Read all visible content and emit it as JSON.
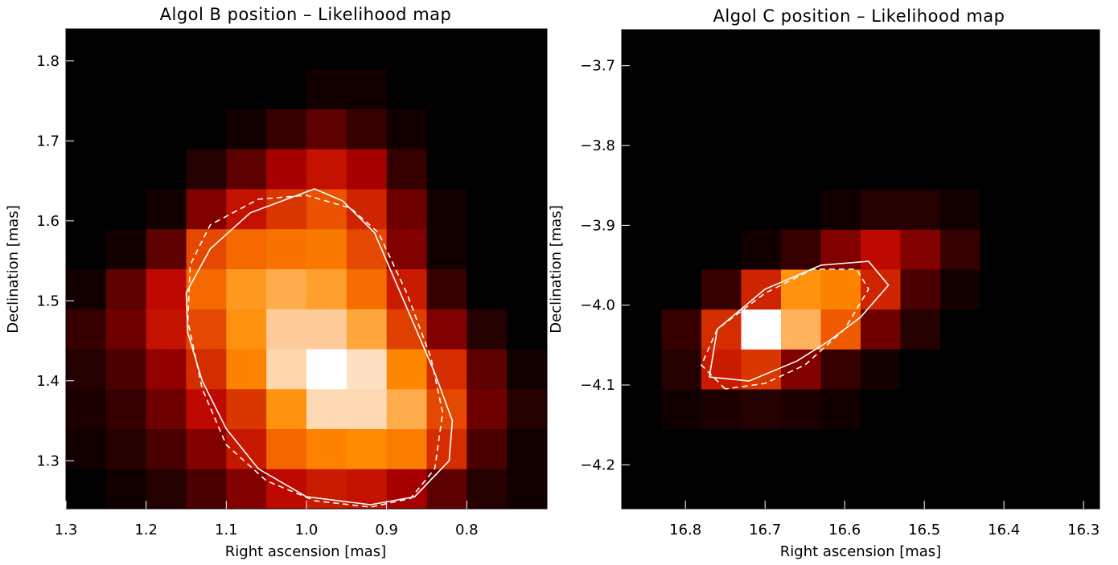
{
  "chart_data": [
    {
      "type": "heatmap",
      "title": "Algol B position –  Likelihood map",
      "xlabel": "Right ascension [mas]",
      "ylabel": "Declination [mas]",
      "xlim": [
        1.3,
        0.7
      ],
      "ylim": [
        1.24,
        1.84
      ],
      "x_reversed": true,
      "xticks": [
        1.3,
        1.2,
        1.1,
        1.0,
        0.9,
        0.8
      ],
      "xtick_labels": [
        "1.3",
        "1.2",
        "1.1",
        "1.0",
        "0.9",
        "0.8"
      ],
      "yticks": [
        1.3,
        1.4,
        1.5,
        1.6,
        1.7,
        1.8
      ],
      "ytick_labels": [
        "1.3",
        "1.4",
        "1.5",
        "1.6",
        "1.7",
        "1.8"
      ],
      "grid": false,
      "colormap": [
        "#000000",
        "#b80000",
        "#f05a00",
        "#ff8c00",
        "#ffcc99",
        "#ffffff"
      ],
      "cell_x_size": 0.05,
      "cell_y_size": 0.05,
      "cell_x_centers": [
        1.275,
        1.225,
        1.175,
        1.125,
        1.075,
        1.025,
        0.975,
        0.925,
        0.875,
        0.825,
        0.775,
        0.725
      ],
      "cell_y_centers": [
        1.265,
        1.315,
        1.365,
        1.415,
        1.465,
        1.515,
        1.565,
        1.615,
        1.665,
        1.715,
        1.765,
        1.815
      ],
      "values": [
        [
          0.0,
          0.02,
          0.04,
          0.08,
          0.14,
          0.22,
          0.26,
          0.24,
          0.18,
          0.1,
          0.04,
          0.02
        ],
        [
          0.02,
          0.04,
          0.08,
          0.14,
          0.25,
          0.45,
          0.56,
          0.6,
          0.54,
          0.3,
          0.08,
          0.02
        ],
        [
          0.03,
          0.06,
          0.12,
          0.22,
          0.32,
          0.62,
          0.85,
          0.85,
          0.7,
          0.36,
          0.12,
          0.04
        ],
        [
          0.04,
          0.08,
          0.16,
          0.3,
          0.56,
          0.84,
          1.0,
          0.88,
          0.58,
          0.3,
          0.1,
          0.02
        ],
        [
          0.06,
          0.12,
          0.24,
          0.36,
          0.62,
          0.8,
          0.8,
          0.68,
          0.34,
          0.14,
          0.04,
          0.0
        ],
        [
          0.02,
          0.1,
          0.22,
          0.46,
          0.64,
          0.7,
          0.66,
          0.48,
          0.26,
          0.06,
          0.0,
          0.0
        ],
        [
          0.0,
          0.02,
          0.1,
          0.36,
          0.46,
          0.5,
          0.52,
          0.36,
          0.14,
          0.02,
          0.0,
          0.0
        ],
        [
          0.0,
          0.0,
          0.02,
          0.14,
          0.24,
          0.32,
          0.38,
          0.28,
          0.12,
          0.02,
          0.0,
          0.0
        ],
        [
          0.0,
          0.0,
          0.0,
          0.04,
          0.1,
          0.18,
          0.24,
          0.18,
          0.06,
          0.0,
          0.0,
          0.0
        ],
        [
          0.0,
          0.0,
          0.0,
          0.0,
          0.02,
          0.06,
          0.1,
          0.06,
          0.02,
          0.0,
          0.0,
          0.0
        ],
        [
          0.0,
          0.0,
          0.0,
          0.0,
          0.0,
          0.0,
          0.02,
          0.02,
          0.0,
          0.0,
          0.0,
          0.0
        ],
        [
          0.0,
          0.0,
          0.0,
          0.0,
          0.0,
          0.0,
          0.0,
          0.0,
          0.0,
          0.0,
          0.0,
          0.0
        ]
      ],
      "contour_solid": [
        [
          1.15,
          1.51
        ],
        [
          1.12,
          1.565
        ],
        [
          1.07,
          1.61
        ],
        [
          0.99,
          1.64
        ],
        [
          0.955,
          1.625
        ],
        [
          0.915,
          1.585
        ],
        [
          0.87,
          1.48
        ],
        [
          0.84,
          1.41
        ],
        [
          0.818,
          1.35
        ],
        [
          0.822,
          1.3
        ],
        [
          0.865,
          1.255
        ],
        [
          0.92,
          1.245
        ],
        [
          1.0,
          1.255
        ],
        [
          1.06,
          1.29
        ],
        [
          1.1,
          1.34
        ],
        [
          1.13,
          1.4
        ],
        [
          1.148,
          1.46
        ],
        [
          1.15,
          1.51
        ]
      ],
      "contour_dashed": [
        [
          1.148,
          1.475
        ],
        [
          1.145,
          1.545
        ],
        [
          1.12,
          1.595
        ],
        [
          1.06,
          1.627
        ],
        [
          1.0,
          1.632
        ],
        [
          0.945,
          1.616
        ],
        [
          0.91,
          1.585
        ],
        [
          0.875,
          1.51
        ],
        [
          0.845,
          1.43
        ],
        [
          0.83,
          1.36
        ],
        [
          0.84,
          1.29
        ],
        [
          0.87,
          1.253
        ],
        [
          0.92,
          1.242
        ],
        [
          0.99,
          1.25
        ],
        [
          1.05,
          1.275
        ],
        [
          1.1,
          1.32
        ],
        [
          1.13,
          1.39
        ],
        [
          1.148,
          1.475
        ]
      ]
    },
    {
      "type": "heatmap",
      "title": "Algol C position – Likelihood map",
      "xlabel": "Right ascension [mas]",
      "ylabel": "Declination [mas]",
      "xlim": [
        16.88,
        16.28
      ],
      "ylim": [
        -4.255,
        -3.655
      ],
      "x_reversed": true,
      "xticks": [
        16.8,
        16.7,
        16.6,
        16.5,
        16.4,
        16.3
      ],
      "xtick_labels": [
        "16.8",
        "16.7",
        "16.6",
        "16.5",
        "16.4",
        "16.3"
      ],
      "yticks": [
        -4.2,
        -4.1,
        -4.0,
        -3.9,
        -3.8,
        -3.7
      ],
      "ytick_labels": [
        "−4.2",
        "−4.1",
        "−4.0",
        "−3.9",
        "−3.8",
        "−3.7"
      ],
      "grid": false,
      "colormap": [
        "#000000",
        "#b80000",
        "#f05a00",
        "#ff8c00",
        "#ffcc99",
        "#ffffff"
      ],
      "cell_x_size": 0.05,
      "cell_y_size": 0.05,
      "cell_x_centers": [
        16.855,
        16.805,
        16.755,
        16.705,
        16.655,
        16.605,
        16.555,
        16.505,
        16.455,
        16.405,
        16.355,
        16.305
      ],
      "cell_y_centers": [
        -4.23,
        -4.18,
        -4.13,
        -4.08,
        -4.03,
        -3.98,
        -3.93,
        -3.88,
        -3.83,
        -3.78,
        -3.73,
        -3.68
      ],
      "values": [
        [
          0.0,
          0.0,
          0.0,
          0.0,
          0.0,
          0.0,
          0.0,
          0.0,
          0.0,
          0.0,
          0.0,
          0.0
        ],
        [
          0.0,
          0.0,
          0.0,
          0.0,
          0.0,
          0.0,
          0.0,
          0.0,
          0.0,
          0.0,
          0.0,
          0.0
        ],
        [
          0.0,
          0.02,
          0.03,
          0.04,
          0.03,
          0.02,
          0.0,
          0.0,
          0.0,
          0.0,
          0.0,
          0.0
        ],
        [
          0.0,
          0.04,
          0.26,
          0.32,
          0.14,
          0.06,
          0.02,
          0.0,
          0.0,
          0.0,
          0.0,
          0.0
        ],
        [
          0.0,
          0.06,
          0.3,
          1.0,
          0.72,
          0.4,
          0.12,
          0.04,
          0.0,
          0.0,
          0.0,
          0.0
        ],
        [
          0.0,
          0.0,
          0.06,
          0.28,
          0.62,
          0.56,
          0.28,
          0.08,
          0.02,
          0.0,
          0.0,
          0.0
        ],
        [
          0.0,
          0.0,
          0.0,
          0.02,
          0.06,
          0.14,
          0.22,
          0.14,
          0.06,
          0.0,
          0.0,
          0.0
        ],
        [
          0.0,
          0.0,
          0.0,
          0.0,
          0.0,
          0.02,
          0.04,
          0.04,
          0.02,
          0.0,
          0.0,
          0.0
        ],
        [
          0.0,
          0.0,
          0.0,
          0.0,
          0.0,
          0.0,
          0.0,
          0.0,
          0.0,
          0.0,
          0.0,
          0.0
        ],
        [
          0.0,
          0.0,
          0.0,
          0.0,
          0.0,
          0.0,
          0.0,
          0.0,
          0.0,
          0.0,
          0.0,
          0.0
        ],
        [
          0.0,
          0.0,
          0.0,
          0.0,
          0.0,
          0.0,
          0.0,
          0.0,
          0.0,
          0.0,
          0.0,
          0.0
        ],
        [
          0.0,
          0.0,
          0.0,
          0.0,
          0.0,
          0.0,
          0.0,
          0.0,
          0.0,
          0.0,
          0.0,
          0.0
        ]
      ],
      "contour_solid": [
        [
          16.77,
          -4.09
        ],
        [
          16.76,
          -4.03
        ],
        [
          16.7,
          -3.98
        ],
        [
          16.63,
          -3.95
        ],
        [
          16.57,
          -3.945
        ],
        [
          16.545,
          -3.975
        ],
        [
          16.58,
          -4.015
        ],
        [
          16.62,
          -4.045
        ],
        [
          16.66,
          -4.07
        ],
        [
          16.72,
          -4.095
        ],
        [
          16.77,
          -4.09
        ]
      ],
      "contour_dashed": [
        [
          16.75,
          -4.105
        ],
        [
          16.78,
          -4.075
        ],
        [
          16.76,
          -4.03
        ],
        [
          16.7,
          -3.985
        ],
        [
          16.64,
          -3.955
        ],
        [
          16.585,
          -3.955
        ],
        [
          16.57,
          -3.98
        ],
        [
          16.6,
          -4.03
        ],
        [
          16.65,
          -4.075
        ],
        [
          16.7,
          -4.098
        ],
        [
          16.75,
          -4.105
        ]
      ]
    }
  ]
}
